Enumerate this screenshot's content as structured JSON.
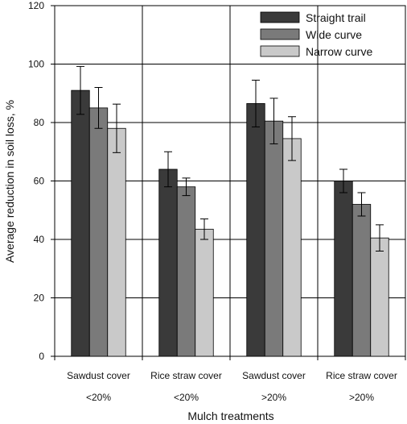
{
  "chart_data": {
    "type": "bar",
    "xlabel": "Mulch treatments",
    "ylabel": "Average reduction in soil loss, %",
    "ylim": [
      0,
      120
    ],
    "yticks": [
      0,
      20,
      40,
      60,
      80,
      100,
      120
    ],
    "grid": true,
    "legend_position": "top-right",
    "categories": [
      {
        "line1": "Sawdust cover",
        "line2": "<20%"
      },
      {
        "line1": "Rice straw cover",
        "line2": "<20%"
      },
      {
        "line1": "Sawdust cover",
        "line2": ">20%"
      },
      {
        "line1": "Rice straw cover",
        "line2": ">20%"
      }
    ],
    "series": [
      {
        "name": "Straight trail",
        "color": "#3a3a3a",
        "values": [
          91,
          64,
          86.5,
          60
        ],
        "errors": [
          8.2,
          6,
          8,
          4
        ]
      },
      {
        "name": "Wide curve",
        "color": "#7a7a7a",
        "values": [
          85,
          58,
          80.5,
          52
        ],
        "errors": [
          7,
          3,
          7.8,
          4
        ]
      },
      {
        "name": "Narrow curve",
        "color": "#c9c9c9",
        "values": [
          78,
          43.5,
          74.5,
          40.5
        ],
        "errors": [
          8.3,
          3.5,
          7.5,
          4.5
        ]
      }
    ]
  }
}
